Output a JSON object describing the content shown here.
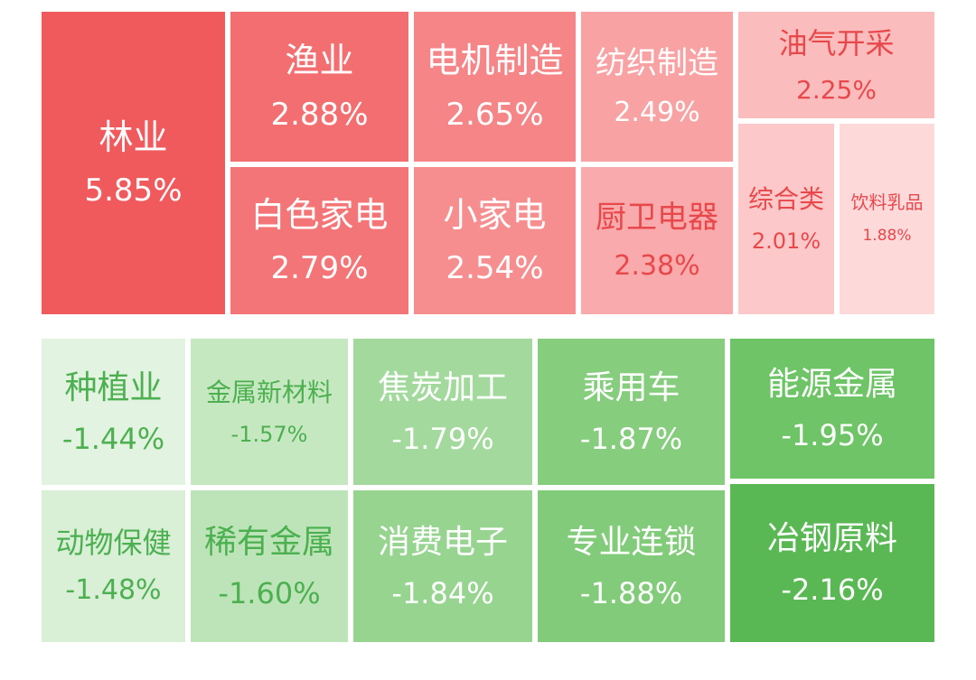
{
  "chart_data": {
    "type": "treemap",
    "gainers": [
      {
        "name": "林业",
        "value": "5.85%",
        "bg": "#f05a5d",
        "fg": "#ffffff"
      },
      {
        "name": "渔业",
        "value": "2.88%",
        "bg": "#f36e70",
        "fg": "#ffffff"
      },
      {
        "name": "白色家电",
        "value": "2.79%",
        "bg": "#f47577",
        "fg": "#ffffff"
      },
      {
        "name": "电机制造",
        "value": "2.65%",
        "bg": "#f58587",
        "fg": "#ffffff"
      },
      {
        "name": "小家电",
        "value": "2.54%",
        "bg": "#f68e90",
        "fg": "#ffffff"
      },
      {
        "name": "纺织制造",
        "value": "2.49%",
        "bg": "#f8a2a4",
        "fg": "#ffffff"
      },
      {
        "name": "厨卫电器",
        "value": "2.38%",
        "bg": "#f9aaac",
        "fg": "#e8484b"
      },
      {
        "name": "油气开采",
        "value": "2.25%",
        "bg": "#fbbcbd",
        "fg": "#e8484b"
      },
      {
        "name": "综合类",
        "value": "2.01%",
        "bg": "#fcc8c9",
        "fg": "#e8484b"
      },
      {
        "name": "饮料乳品",
        "value": "1.88%",
        "bg": "#fdd9da",
        "fg": "#e8484b"
      }
    ],
    "losers": [
      {
        "name": "种植业",
        "value": "-1.44%",
        "bg": "#e3f3e1",
        "fg": "#4cb050"
      },
      {
        "name": "动物保健",
        "value": "-1.48%",
        "bg": "#d9efd6",
        "fg": "#4cb050"
      },
      {
        "name": "金属新材料",
        "value": "-1.57%",
        "bg": "#c6e8c1",
        "fg": "#4cb050"
      },
      {
        "name": "稀有金属",
        "value": "-1.60%",
        "bg": "#bde4b8",
        "fg": "#4cb050"
      },
      {
        "name": "焦炭加工",
        "value": "-1.79%",
        "bg": "#a3d99d",
        "fg": "#ffffff"
      },
      {
        "name": "消费电子",
        "value": "-1.84%",
        "bg": "#97d490",
        "fg": "#ffffff"
      },
      {
        "name": "乘用车",
        "value": "-1.87%",
        "bg": "#86cd7e",
        "fg": "#ffffff"
      },
      {
        "name": "专业连锁",
        "value": "-1.88%",
        "bg": "#82cb7a",
        "fg": "#ffffff"
      },
      {
        "name": "能源金属",
        "value": "-1.95%",
        "bg": "#6ec466",
        "fg": "#ffffff"
      },
      {
        "name": "冶钢原料",
        "value": "-2.16%",
        "bg": "#5ab854",
        "fg": "#ffffff"
      }
    ]
  }
}
